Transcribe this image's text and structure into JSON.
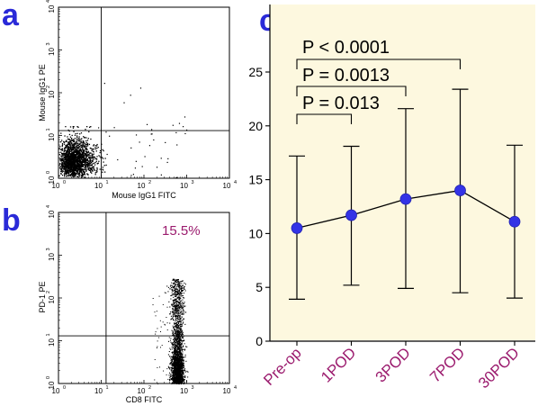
{
  "panels": {
    "a": "a",
    "b": "b",
    "c": "c"
  },
  "colors": {
    "panel_letter": "#2a2ad8",
    "magenta": "#9b1b6e",
    "panel_c_bg": "#fdf8df",
    "dots": "#000000"
  },
  "chart_data": [
    {
      "type": "scatter",
      "panel": "a",
      "xlabel": "Mouse IgG1 FITC",
      "ylabel": "Mouse IgG1 PE",
      "xscale": "log",
      "yscale": "log",
      "xlim": [
        1,
        10000
      ],
      "ylim": [
        1,
        10000
      ],
      "tick_labels": [
        "10",
        "10",
        "10",
        "10",
        "10"
      ],
      "tick_exponents": [
        "0",
        "1",
        "2",
        "3",
        "4"
      ],
      "quadrant_gate": {
        "x": 10,
        "y": 13
      },
      "population": "dense cluster near origin (10^0–10^1 on both axes) with sparse events up to ~10^3"
    },
    {
      "type": "scatter",
      "panel": "b",
      "xlabel": "CD8 FITC",
      "ylabel": "PD-1 PE",
      "xscale": "log",
      "yscale": "log",
      "xlim": [
        1,
        10000
      ],
      "ylim": [
        1,
        10000
      ],
      "tick_labels": [
        "10",
        "10",
        "10",
        "10",
        "10"
      ],
      "tick_exponents": [
        "0",
        "1",
        "2",
        "3",
        "4"
      ],
      "quadrant_gate": {
        "x": 13,
        "y": 13
      },
      "annotation": "15.5%",
      "population": "CD8+ events at ~10^2.7–10^3 on x, spread from 10^0 to ~10^2.5 on y"
    },
    {
      "type": "line",
      "panel": "c",
      "categories": [
        "Pre-op",
        "1POD",
        "3POD",
        "7POD",
        "30POD"
      ],
      "series": [
        {
          "values": [
            10.5,
            11.7,
            13.2,
            14.0,
            11.1
          ],
          "error_low": [
            3.9,
            5.2,
            4.9,
            4.5,
            4.0
          ],
          "error_high": [
            17.2,
            18.1,
            21.6,
            23.4,
            18.2
          ]
        }
      ],
      "ylim": [
        0,
        25
      ],
      "yticks": [
        0,
        5,
        10,
        15,
        20,
        25
      ],
      "grid": false,
      "significance": [
        {
          "from": "Pre-op",
          "to": "1POD",
          "label": "P = 0.013"
        },
        {
          "from": "Pre-op",
          "to": "3POD",
          "label": "P = 0.0013"
        },
        {
          "from": "Pre-op",
          "to": "7POD",
          "label": "P < 0.0001"
        }
      ]
    }
  ]
}
